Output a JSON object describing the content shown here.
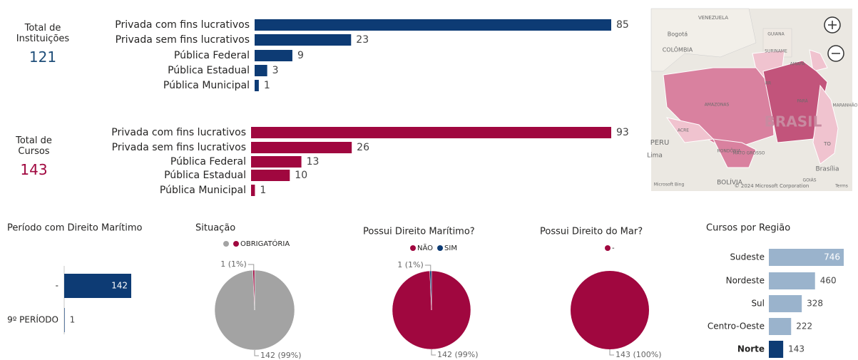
{
  "cards": [
    {
      "label": "Total de Instituições",
      "value": 121,
      "color": "#1f4e79"
    },
    {
      "label": "Total de Cursos",
      "value": 143,
      "color": "#a0073f"
    }
  ],
  "chart_data": [
    {
      "type": "hbar",
      "categories": [
        "Privada com fins lucrativos",
        "Privada sem fins lucrativos",
        "Pública Federal",
        "Pública Estadual",
        "Pública Municipal"
      ],
      "values": [
        85,
        23,
        9,
        3,
        1
      ],
      "color": "#0d3b74"
    },
    {
      "type": "hbar",
      "categories": [
        "Privada com fins lucrativos",
        "Privada sem fins lucrativos",
        "Pública Federal",
        "Pública Estadual",
        "Pública Municipal"
      ],
      "values": [
        93,
        26,
        13,
        10,
        1
      ],
      "color": "#a0073f"
    },
    {
      "type": "hbar",
      "title": "Período com Direito Marítimo",
      "categories": [
        "-",
        "9º PERÍODO"
      ],
      "values": [
        142,
        1
      ],
      "color": "#0d3b74"
    },
    {
      "type": "pie",
      "title": "Situação",
      "categories": [
        null,
        "OBRIGATÓRIA"
      ],
      "values": [
        142,
        1
      ],
      "value_labels": [
        "142 (99%)",
        "1 (1%)"
      ],
      "colors": [
        "#a3a3a3",
        "#a0073f"
      ]
    },
    {
      "type": "pie",
      "title": "Possui Direito Marítimo?",
      "categories": [
        "NÃO",
        "SIM"
      ],
      "values": [
        142,
        1
      ],
      "value_labels": [
        "142 (99%)",
        "1 (1%)"
      ],
      "colors": [
        "#a0073f",
        "#0d3b74"
      ]
    },
    {
      "type": "pie",
      "title": "Possui Direito do Mar?",
      "categories": [
        "-"
      ],
      "values": [
        143
      ],
      "value_labels": [
        "143 (100%)"
      ],
      "colors": [
        "#a0073f"
      ]
    },
    {
      "type": "hbar",
      "title": "Cursos por Região",
      "categories": [
        "Sudeste",
        "Nordeste",
        "Sul",
        "Centro-Oeste",
        "Norte"
      ],
      "values": [
        746,
        460,
        328,
        222,
        143
      ],
      "colors": [
        "#9ab3cc",
        "#9ab3cc",
        "#9ab3cc",
        "#9ab3cc",
        "#0d3b74"
      ]
    }
  ],
  "map": {
    "labels": [
      "VENEZUELA",
      "Bogotá",
      "COLÔMBIA",
      "GUIANA",
      "SURINAME",
      "AMAPÁ",
      "RR",
      "AMAZONAS",
      "PARÁ",
      "MARANHÃO",
      "BRASIL",
      "ACRE",
      "PERU",
      "Lima",
      "RONDÔNIA",
      "MATO GROSSO",
      "TO",
      "Brasília",
      "BOLÍVIA",
      "GOIÁS",
      "© 2024 Microsoft Corporation",
      "Terms",
      "Microsoft Bing"
    ]
  }
}
